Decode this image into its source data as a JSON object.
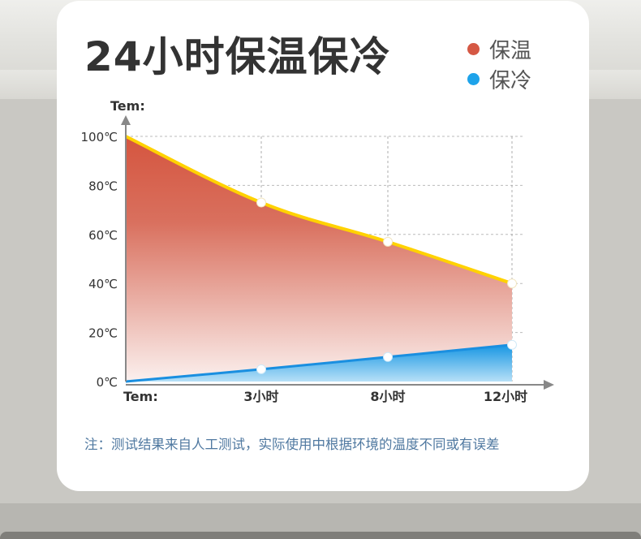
{
  "title": "24小时保温保冷",
  "legend": [
    {
      "label": "保温",
      "color": "#d55844"
    },
    {
      "label": "保冷",
      "color": "#1ea3ea"
    }
  ],
  "note": "注：测试结果来自人工测试，实际使用中根据环境的温度不同或有误差",
  "chart_data": {
    "type": "area",
    "y_axis_label": "Tem:",
    "x_axis_label": "Tem:",
    "y_ticks": [
      "100℃",
      "80℃",
      "60℃",
      "40℃",
      "20℃",
      "0℃"
    ],
    "y_tick_values": [
      100,
      80,
      60,
      40,
      20,
      0
    ],
    "x_ticks": [
      "3小时",
      "8小时",
      "12小时"
    ],
    "ylim": [
      0,
      100
    ],
    "grid": true,
    "series": [
      {
        "name": "保温",
        "color": "#d55844",
        "line_color": "#ffd200",
        "x": [
          0,
          3,
          8,
          12
        ],
        "y": [
          100,
          73,
          57,
          40
        ]
      },
      {
        "name": "保冷",
        "color": "#1ea3ea",
        "line_color": "#1a8fe0",
        "x": [
          0,
          3,
          8,
          12
        ],
        "y": [
          0,
          5,
          10,
          15
        ]
      }
    ]
  }
}
